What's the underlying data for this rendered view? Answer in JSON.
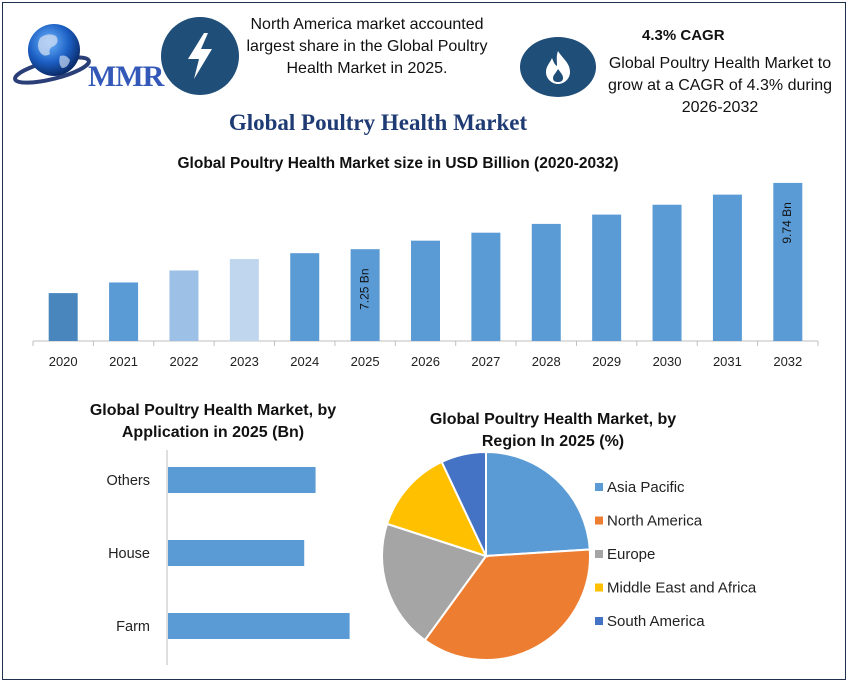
{
  "logo": {
    "text": "MMR"
  },
  "info_left": {
    "icon": "lightning-icon",
    "text": "North America market accounted largest share in the Global Poultry Health Market in 2025."
  },
  "info_right": {
    "icon": "flame-icon",
    "title": "4.3% CAGR",
    "text": "Global Poultry Health Market to grow at a CAGR of 4.3% during 2026-2032"
  },
  "main_title": "Global Poultry Health Market",
  "colors": {
    "bar_blue": "#5b9bd5",
    "bar_dark": "#4a86be",
    "bar_light": "#9dc0e6",
    "bar_lighter": "#c0d6ef",
    "icon_bg": "#1f4e79",
    "title_blue": "#1f3b73"
  },
  "chart_data": [
    {
      "type": "bar",
      "title": "Global Poultry Health Market size in USD Billion (2020-2032)",
      "categories": [
        "2020",
        "2021",
        "2022",
        "2023",
        "2024",
        "2025",
        "2026",
        "2027",
        "2028",
        "2029",
        "2030",
        "2031",
        "2032"
      ],
      "values": [
        5.6,
        6.0,
        6.45,
        6.88,
        7.1,
        7.25,
        7.57,
        7.87,
        8.2,
        8.55,
        8.92,
        9.3,
        9.74
      ],
      "bar_colors": [
        "#4a86be",
        "#5b9bd5",
        "#9dc0e6",
        "#c0d6ef",
        "#5b9bd5",
        "#5b9bd5",
        "#5b9bd5",
        "#5b9bd5",
        "#5b9bd5",
        "#5b9bd5",
        "#5b9bd5",
        "#5b9bd5",
        "#5b9bd5"
      ],
      "data_labels": {
        "2025": "7.25 Bn",
        "2032": "9.74 Bn"
      },
      "ylim": [
        3.8,
        10.0
      ],
      "grid": false
    },
    {
      "type": "bar",
      "orientation": "horizontal",
      "title": "Global Poultry Health Market, by Application in 2025 (Bn)",
      "categories": [
        "Others",
        "House",
        "Farm"
      ],
      "values": [
        2.6,
        2.4,
        3.2
      ],
      "xlim": [
        0,
        3.7
      ],
      "grid": false
    },
    {
      "type": "pie",
      "title": "Global Poultry Health Market, by Region In 2025 (%)",
      "categories": [
        "Asia Pacific",
        "North America",
        "Europe",
        "Middle East and Africa",
        "South America"
      ],
      "values": [
        24,
        36,
        20,
        13,
        7
      ],
      "colors": [
        "#5b9bd5",
        "#ed7d31",
        "#a5a5a5",
        "#ffc000",
        "#4472c4"
      ],
      "legend": "right"
    }
  ]
}
